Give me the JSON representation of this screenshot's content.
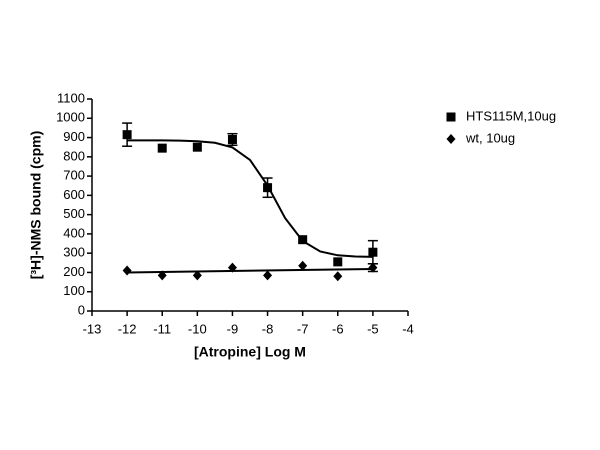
{
  "chart_data": {
    "type": "scatter",
    "x_label": "[Atropine] Log M",
    "y_label": "[³H]-NMS bound (cpm)",
    "x": [
      -12,
      -11,
      -10,
      -9,
      -8,
      -7,
      -6,
      -5
    ],
    "series": [
      {
        "name": "HTS115M,10ug",
        "color": "#000000",
        "marker": "square",
        "values": [
          915,
          845,
          850,
          890,
          640,
          370,
          255,
          305
        ],
        "errors": [
          60,
          null,
          null,
          30,
          50,
          null,
          null,
          60
        ],
        "fit": {
          "x": [
            -12,
            -11.5,
            -11,
            -10.5,
            -10,
            -9.5,
            -9,
            -8.5,
            -8,
            -7.5,
            -7,
            -6.5,
            -6,
            -5.5,
            -5
          ],
          "values": [
            885,
            885,
            885,
            884,
            881,
            873,
            849,
            784,
            651,
            482,
            363,
            309,
            289,
            283,
            281
          ]
        }
      },
      {
        "name": "wt, 10ug",
        "color": "#000000",
        "marker": "diamond",
        "values": [
          210,
          185,
          185,
          225,
          185,
          235,
          180,
          225
        ],
        "errors": [
          null,
          null,
          null,
          null,
          null,
          null,
          null,
          20
        ],
        "fit": {
          "x": [
            -12,
            -5
          ],
          "values": [
            200,
            218
          ]
        }
      }
    ],
    "xlim": [
      -13,
      -4
    ],
    "xticks": [
      -13,
      -12,
      -11,
      -10,
      -9,
      -8,
      -7,
      -6,
      -5,
      -4
    ],
    "ylim": [
      0,
      1100
    ],
    "yticks": [
      0,
      100,
      200,
      300,
      400,
      500,
      600,
      700,
      800,
      900,
      1000,
      1100
    ],
    "legend": "right"
  }
}
